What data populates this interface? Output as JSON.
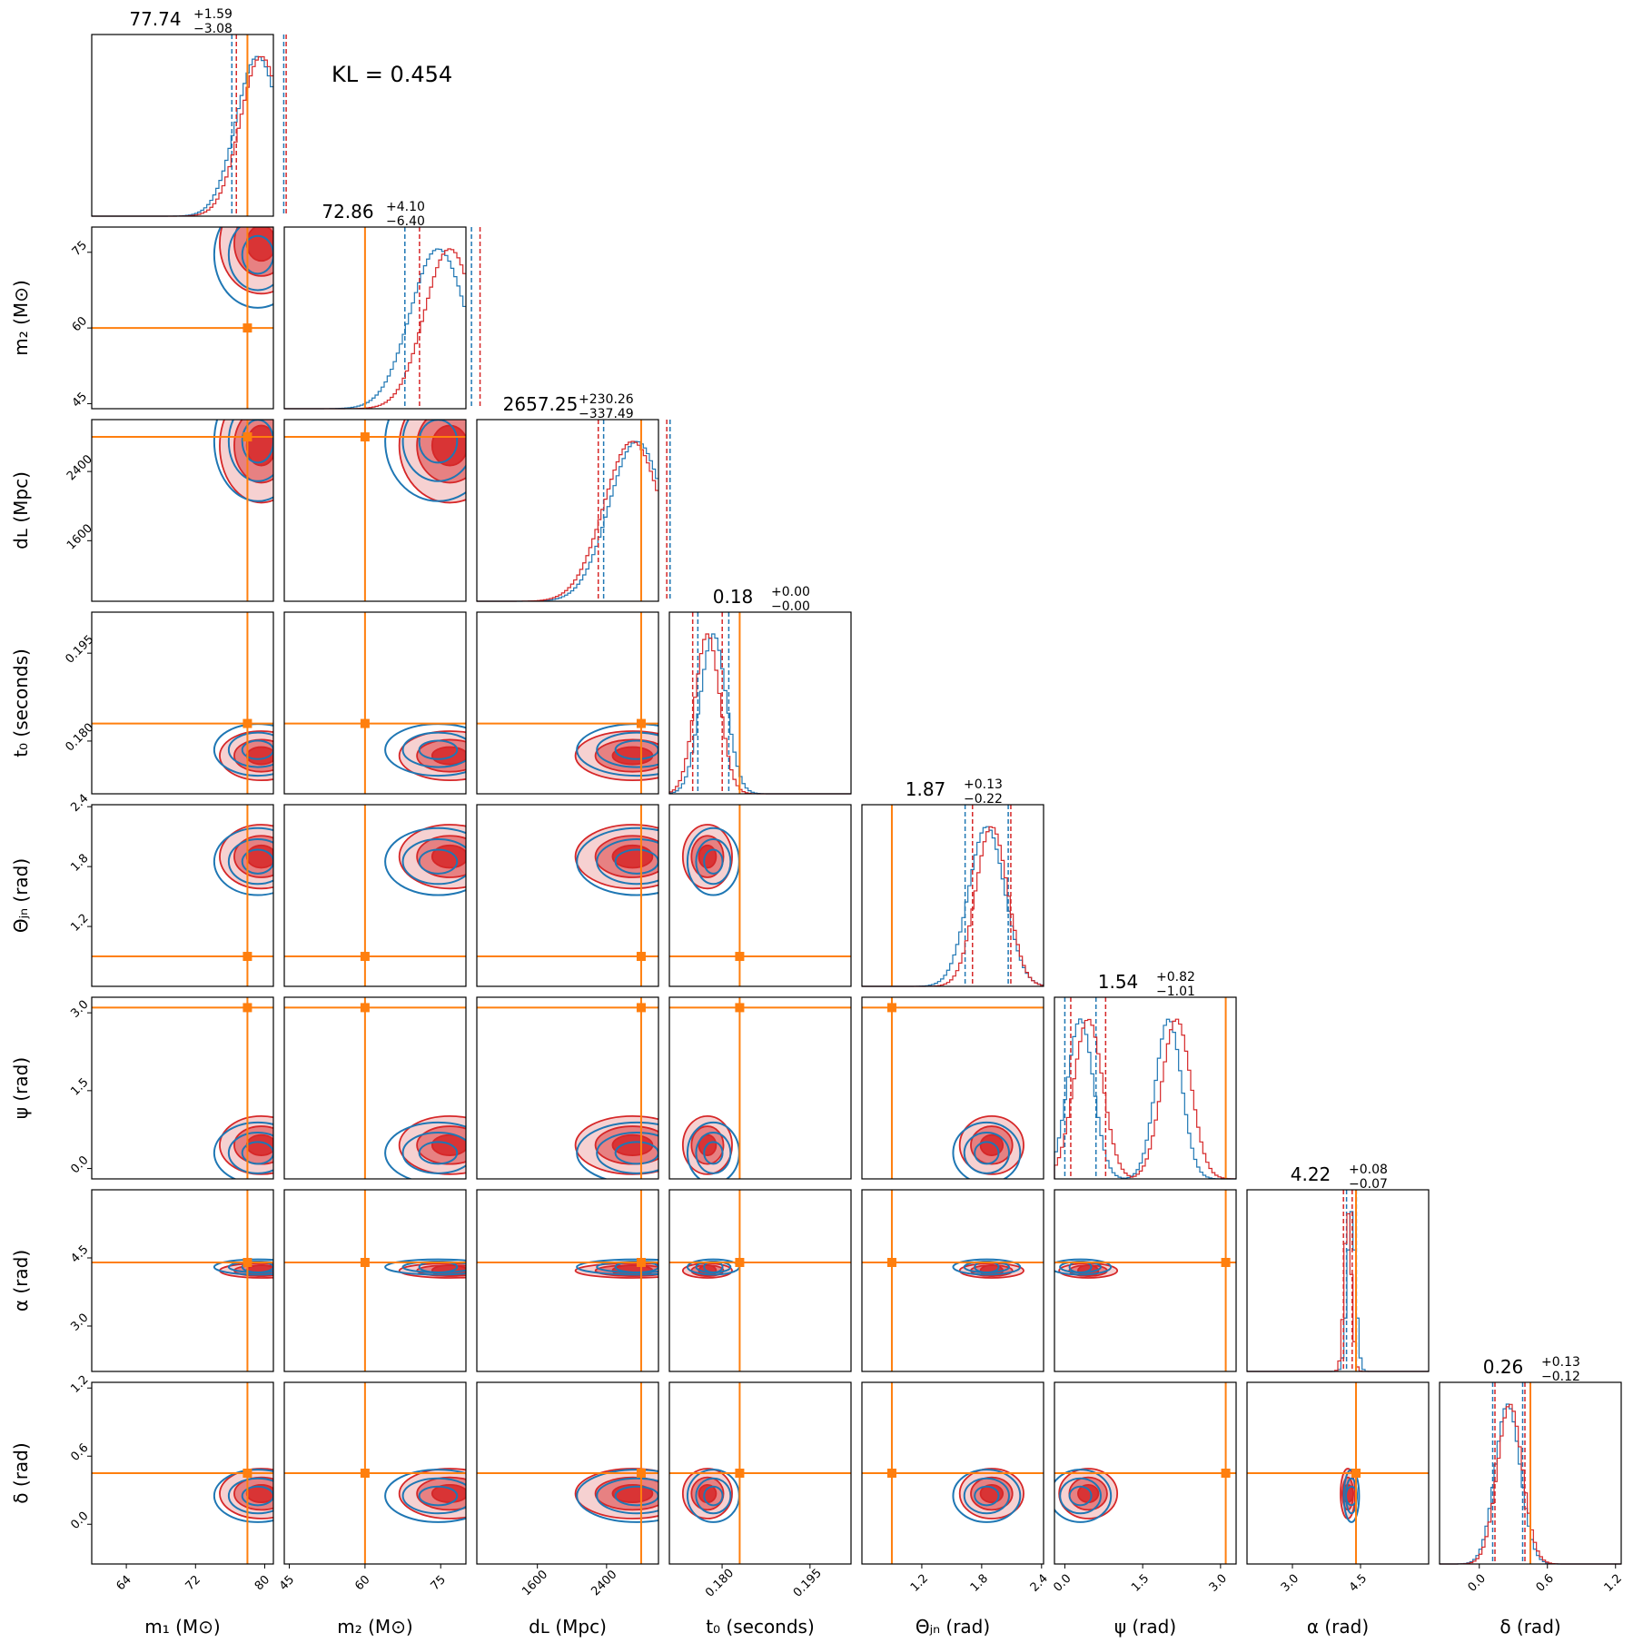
{
  "annotation": "KL = 0.454",
  "colors": {
    "series_blue": "#1f77b4",
    "series_red": "#d62728",
    "truth": "#ff7f0e"
  },
  "chart_data": {
    "type": "corner",
    "parameters": [
      {
        "key": "m1",
        "label": "m₁ (M⊙)",
        "ticks": [
          "64",
          "72",
          "80"
        ],
        "range": [
          60,
          81
        ],
        "truth": 78.0,
        "title": "77.74",
        "plus": "+1.59",
        "minus": "−3.08"
      },
      {
        "key": "m2",
        "label": "m₂ (M⊙)",
        "ticks": [
          "45",
          "60",
          "75"
        ],
        "range": [
          44,
          80
        ],
        "truth": 60.0,
        "title": "72.86",
        "plus": "+4.10",
        "minus": "−6.40"
      },
      {
        "key": "dL",
        "label": "dʟ (Mpc)",
        "ticks": [
          "1600",
          "2400"
        ],
        "range": [
          900,
          3000
        ],
        "truth": 2800,
        "title": "2657.25",
        "plus": "+230.26",
        "minus": "−337.49"
      },
      {
        "key": "t0",
        "label": "t₀ (seconds)",
        "ticks": [
          "0.180",
          "0.195"
        ],
        "range": [
          0.171,
          0.202
        ],
        "truth": 0.183,
        "title": "0.18",
        "plus": "+0.00",
        "minus": "−0.00"
      },
      {
        "key": "theta",
        "label": "Θⱼₙ (rad)",
        "ticks": [
          "1.2",
          "1.8",
          "2.4"
        ],
        "range": [
          0.6,
          2.42
        ],
        "truth": 0.9,
        "title": "1.87",
        "plus": "+0.13",
        "minus": "−0.22"
      },
      {
        "key": "psi",
        "label": "ψ (rad)",
        "ticks": [
          "0.0",
          "1.5",
          "3.0"
        ],
        "range": [
          -0.2,
          3.3
        ],
        "truth": 3.1,
        "title": "1.54",
        "plus": "+0.82",
        "minus": "−1.01"
      },
      {
        "key": "alpha",
        "label": "α (rad)",
        "ticks": [
          "3.0",
          "4.5"
        ],
        "range": [
          2.0,
          6.0
        ],
        "truth": 4.4,
        "title": "4.22",
        "plus": "+0.08",
        "minus": "−0.07"
      },
      {
        "key": "delta",
        "label": "δ (rad)",
        "ticks": [
          "0.0",
          "0.6",
          "1.2"
        ],
        "range": [
          -0.35,
          1.25
        ],
        "truth": 0.45,
        "title": "0.26",
        "plus": "+0.13",
        "minus": "−0.12"
      }
    ],
    "series": [
      {
        "color": "#1f77b4",
        "peaks": [
          79.2,
          74.5,
          2750,
          0.1785,
          1.85,
          0.3,
          4.3,
          0.25
        ],
        "widths": [
          2.5,
          5.5,
          320,
          0.0022,
          0.18,
          0.25,
          0.09,
          0.11
        ]
      },
      {
        "color": "#d62728",
        "peaks": [
          79.6,
          76.8,
          2700,
          0.1775,
          1.9,
          0.45,
          4.22,
          0.27
        ],
        "widths": [
          2.4,
          5.0,
          330,
          0.0021,
          0.16,
          0.28,
          0.08,
          0.11
        ]
      }
    ]
  }
}
